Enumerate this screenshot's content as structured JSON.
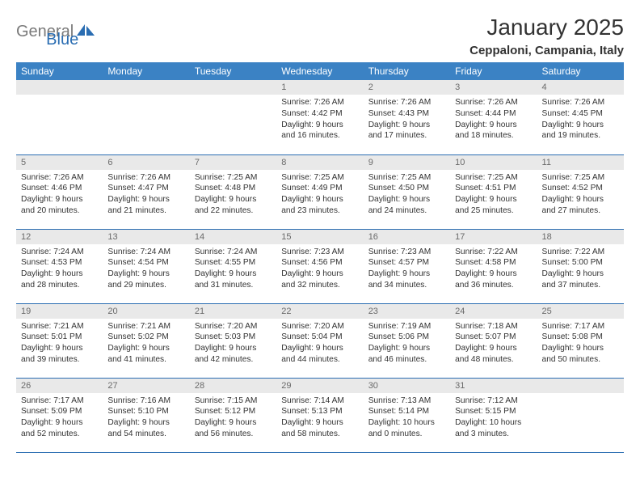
{
  "logo": {
    "general": "General",
    "blue": "Blue"
  },
  "title": "January 2025",
  "location": "Ceppaloni, Campania, Italy",
  "colors": {
    "header_bg": "#3b82c4",
    "header_fg": "#ffffff",
    "daynum_bg": "#e9e9e9",
    "daynum_fg": "#6a6a6a",
    "rule": "#2a6db2",
    "logo_gray": "#7a7a7a",
    "logo_blue": "#2a6db2"
  },
  "weekdays": [
    "Sunday",
    "Monday",
    "Tuesday",
    "Wednesday",
    "Thursday",
    "Friday",
    "Saturday"
  ],
  "weeks": [
    [
      null,
      null,
      null,
      {
        "n": "1",
        "sr": "7:26 AM",
        "ss": "4:42 PM",
        "dl": "9 hours and 16 minutes."
      },
      {
        "n": "2",
        "sr": "7:26 AM",
        "ss": "4:43 PM",
        "dl": "9 hours and 17 minutes."
      },
      {
        "n": "3",
        "sr": "7:26 AM",
        "ss": "4:44 PM",
        "dl": "9 hours and 18 minutes."
      },
      {
        "n": "4",
        "sr": "7:26 AM",
        "ss": "4:45 PM",
        "dl": "9 hours and 19 minutes."
      }
    ],
    [
      {
        "n": "5",
        "sr": "7:26 AM",
        "ss": "4:46 PM",
        "dl": "9 hours and 20 minutes."
      },
      {
        "n": "6",
        "sr": "7:26 AM",
        "ss": "4:47 PM",
        "dl": "9 hours and 21 minutes."
      },
      {
        "n": "7",
        "sr": "7:25 AM",
        "ss": "4:48 PM",
        "dl": "9 hours and 22 minutes."
      },
      {
        "n": "8",
        "sr": "7:25 AM",
        "ss": "4:49 PM",
        "dl": "9 hours and 23 minutes."
      },
      {
        "n": "9",
        "sr": "7:25 AM",
        "ss": "4:50 PM",
        "dl": "9 hours and 24 minutes."
      },
      {
        "n": "10",
        "sr": "7:25 AM",
        "ss": "4:51 PM",
        "dl": "9 hours and 25 minutes."
      },
      {
        "n": "11",
        "sr": "7:25 AM",
        "ss": "4:52 PM",
        "dl": "9 hours and 27 minutes."
      }
    ],
    [
      {
        "n": "12",
        "sr": "7:24 AM",
        "ss": "4:53 PM",
        "dl": "9 hours and 28 minutes."
      },
      {
        "n": "13",
        "sr": "7:24 AM",
        "ss": "4:54 PM",
        "dl": "9 hours and 29 minutes."
      },
      {
        "n": "14",
        "sr": "7:24 AM",
        "ss": "4:55 PM",
        "dl": "9 hours and 31 minutes."
      },
      {
        "n": "15",
        "sr": "7:23 AM",
        "ss": "4:56 PM",
        "dl": "9 hours and 32 minutes."
      },
      {
        "n": "16",
        "sr": "7:23 AM",
        "ss": "4:57 PM",
        "dl": "9 hours and 34 minutes."
      },
      {
        "n": "17",
        "sr": "7:22 AM",
        "ss": "4:58 PM",
        "dl": "9 hours and 36 minutes."
      },
      {
        "n": "18",
        "sr": "7:22 AM",
        "ss": "5:00 PM",
        "dl": "9 hours and 37 minutes."
      }
    ],
    [
      {
        "n": "19",
        "sr": "7:21 AM",
        "ss": "5:01 PM",
        "dl": "9 hours and 39 minutes."
      },
      {
        "n": "20",
        "sr": "7:21 AM",
        "ss": "5:02 PM",
        "dl": "9 hours and 41 minutes."
      },
      {
        "n": "21",
        "sr": "7:20 AM",
        "ss": "5:03 PM",
        "dl": "9 hours and 42 minutes."
      },
      {
        "n": "22",
        "sr": "7:20 AM",
        "ss": "5:04 PM",
        "dl": "9 hours and 44 minutes."
      },
      {
        "n": "23",
        "sr": "7:19 AM",
        "ss": "5:06 PM",
        "dl": "9 hours and 46 minutes."
      },
      {
        "n": "24",
        "sr": "7:18 AM",
        "ss": "5:07 PM",
        "dl": "9 hours and 48 minutes."
      },
      {
        "n": "25",
        "sr": "7:17 AM",
        "ss": "5:08 PM",
        "dl": "9 hours and 50 minutes."
      }
    ],
    [
      {
        "n": "26",
        "sr": "7:17 AM",
        "ss": "5:09 PM",
        "dl": "9 hours and 52 minutes."
      },
      {
        "n": "27",
        "sr": "7:16 AM",
        "ss": "5:10 PM",
        "dl": "9 hours and 54 minutes."
      },
      {
        "n": "28",
        "sr": "7:15 AM",
        "ss": "5:12 PM",
        "dl": "9 hours and 56 minutes."
      },
      {
        "n": "29",
        "sr": "7:14 AM",
        "ss": "5:13 PM",
        "dl": "9 hours and 58 minutes."
      },
      {
        "n": "30",
        "sr": "7:13 AM",
        "ss": "5:14 PM",
        "dl": "10 hours and 0 minutes."
      },
      {
        "n": "31",
        "sr": "7:12 AM",
        "ss": "5:15 PM",
        "dl": "10 hours and 3 minutes."
      },
      null
    ]
  ],
  "labels": {
    "sunrise": "Sunrise: ",
    "sunset": "Sunset: ",
    "daylight": "Daylight: "
  }
}
